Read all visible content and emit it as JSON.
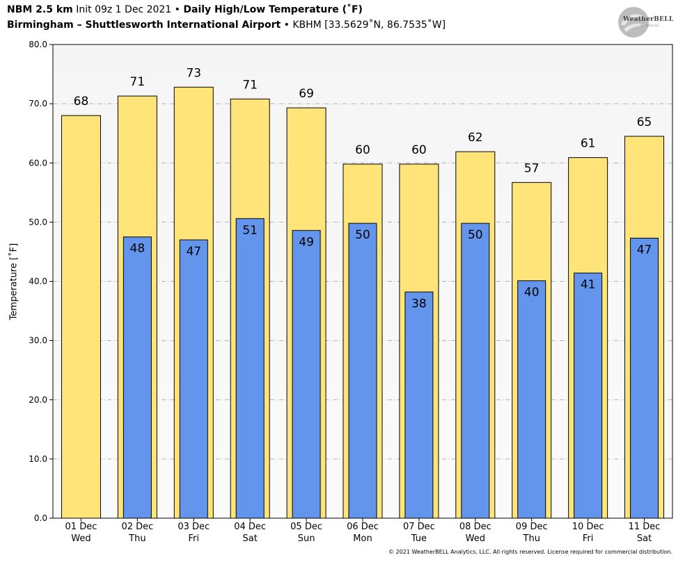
{
  "header": {
    "model": "NBM 2.5 km",
    "init": "Init 09z 1 Dec 2021",
    "sep": "•",
    "product": "Daily High/Low Temperature (˚F)",
    "location": "Birmingham – Shuttlesworth International Airport",
    "station": "KBHM [33.5629˚N, 86.7535˚W]"
  },
  "logo": {
    "name": "WeatherBELL",
    "sub": "Analytics LLC"
  },
  "copyright": "© 2021 WeatherBELL Analytics, LLC. All rights reserved. License required for commercial distribution.",
  "chart_data": {
    "type": "bar",
    "ylabel": "Temperature [˚F]",
    "ylim": [
      0,
      80
    ],
    "yticks": [
      "0.0",
      "10.0",
      "20.0",
      "30.0",
      "40.0",
      "50.0",
      "60.0",
      "70.0",
      "80.0"
    ],
    "grid": true,
    "categories": [
      [
        "01 Dec",
        "Wed"
      ],
      [
        "02 Dec",
        "Thu"
      ],
      [
        "03 Dec",
        "Fri"
      ],
      [
        "04 Dec",
        "Sat"
      ],
      [
        "05 Dec",
        "Sun"
      ],
      [
        "06 Dec",
        "Mon"
      ],
      [
        "07 Dec",
        "Tue"
      ],
      [
        "08 Dec",
        "Wed"
      ],
      [
        "09 Dec",
        "Thu"
      ],
      [
        "10 Dec",
        "Fri"
      ],
      [
        "11 Dec",
        "Sat"
      ]
    ],
    "series": [
      {
        "values": [
          68,
          71.3,
          72.8,
          70.8,
          69.3,
          59.8,
          59.8,
          61.9,
          56.7,
          60.9,
          64.5
        ],
        "labels": [
          "68",
          "71",
          "73",
          "71",
          "69",
          "60",
          "60",
          "62",
          "57",
          "61",
          "65"
        ],
        "color": "#ffe47a"
      },
      {
        "values": [
          null,
          47.5,
          47.0,
          50.6,
          48.6,
          49.8,
          38.2,
          49.8,
          40.1,
          41.4,
          47.3
        ],
        "labels": [
          "",
          "48",
          "47",
          "51",
          "49",
          "50",
          "38",
          "50",
          "40",
          "41",
          "47"
        ],
        "color": "#6495ed"
      }
    ],
    "plot_bg_top": "#f5f5f5",
    "plot_bg_bottom": "#fafafa"
  }
}
